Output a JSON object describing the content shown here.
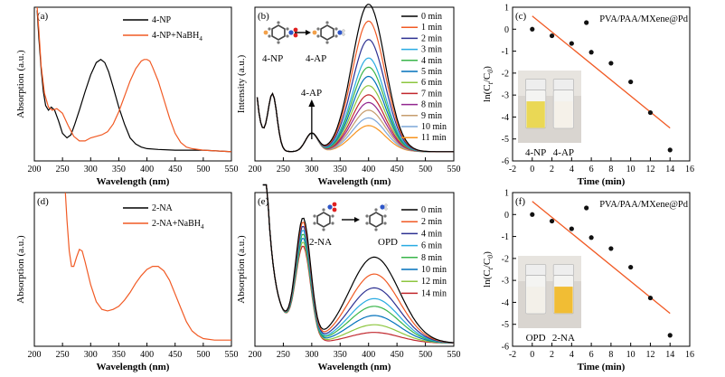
{
  "chart_data": [
    {
      "id": "a",
      "panel_label": "(a)",
      "type": "line",
      "xlabel": "Wavelength (nm)",
      "ylabel": "Absorption (a.u.)",
      "xlim": [
        200,
        550
      ],
      "ylim": [
        0,
        1
      ],
      "xticks": [
        "200",
        "250",
        "300",
        "350",
        "400",
        "450",
        "500",
        "550"
      ],
      "legend": "top-right",
      "series": [
        {
          "name": "4-NP",
          "color": "#000000",
          "x": [
            205,
            208,
            212,
            216,
            220,
            225,
            230,
            236,
            243,
            250,
            258,
            265,
            272,
            280,
            290,
            300,
            310,
            318,
            325,
            332,
            340,
            350,
            360,
            370,
            380,
            390,
            400,
            420,
            450,
            480,
            500,
            550
          ],
          "y": [
            0.98,
            0.8,
            0.6,
            0.45,
            0.36,
            0.33,
            0.35,
            0.33,
            0.26,
            0.18,
            0.15,
            0.17,
            0.24,
            0.33,
            0.45,
            0.56,
            0.64,
            0.66,
            0.64,
            0.58,
            0.48,
            0.35,
            0.24,
            0.15,
            0.11,
            0.09,
            0.08,
            0.075,
            0.07,
            0.07,
            0.07,
            0.06
          ]
        },
        {
          "name": "4-NP+NaBH",
          "sub": "4",
          "color": "#f15a24",
          "x": [
            205,
            208,
            212,
            218,
            225,
            232,
            240,
            250,
            260,
            270,
            280,
            290,
            300,
            310,
            320,
            330,
            340,
            350,
            360,
            370,
            380,
            390,
            395,
            400,
            405,
            410,
            420,
            430,
            440,
            450,
            460,
            470,
            480,
            500,
            550
          ],
          "y": [
            1.0,
            0.85,
            0.62,
            0.44,
            0.35,
            0.33,
            0.34,
            0.31,
            0.23,
            0.16,
            0.13,
            0.13,
            0.15,
            0.16,
            0.17,
            0.19,
            0.24,
            0.32,
            0.42,
            0.52,
            0.6,
            0.65,
            0.66,
            0.66,
            0.65,
            0.61,
            0.52,
            0.4,
            0.28,
            0.18,
            0.12,
            0.09,
            0.08,
            0.07,
            0.06
          ]
        }
      ]
    },
    {
      "id": "b",
      "panel_label": "(b)",
      "type": "line",
      "xlabel": "Wavelength (nm)",
      "ylabel": "Intensity (a.u.)",
      "xlim": [
        200,
        550
      ],
      "ylim": [
        0,
        1
      ],
      "xticks": [
        "200",
        "250",
        "300",
        "350",
        "400",
        "450",
        "500",
        "550"
      ],
      "legend": "top-right",
      "annotations": [
        "4-NP",
        "4-AP",
        "4-AP"
      ],
      "peak_heights": [
        0.96,
        0.85,
        0.73,
        0.61,
        0.55,
        0.49,
        0.43,
        0.37,
        0.32,
        0.27,
        0.22,
        0.17
      ],
      "series": [
        {
          "name": "0 min",
          "color": "#000000"
        },
        {
          "name": "1 min",
          "color": "#f15a24"
        },
        {
          "name": "2 min",
          "color": "#2e3192"
        },
        {
          "name": "3 min",
          "color": "#29abe2"
        },
        {
          "name": "4 min",
          "color": "#39b54a"
        },
        {
          "name": "5 min",
          "color": "#0071bc"
        },
        {
          "name": "6 min",
          "color": "#8dc63f"
        },
        {
          "name": "7 min",
          "color": "#c1272d"
        },
        {
          "name": "8 min",
          "color": "#92278f"
        },
        {
          "name": "9 min",
          "color": "#c69c6d"
        },
        {
          "name": "10 min",
          "color": "#7da7d9"
        },
        {
          "name": "11 min",
          "color": "#f7931e"
        }
      ]
    },
    {
      "id": "c",
      "panel_label": "(c)",
      "type": "scatter",
      "xlabel": "Time (min)",
      "ylabel": "ln(C/C)",
      "ylabel_sub1": "t",
      "ylabel_sub2": "0",
      "xlim": [
        -2,
        16
      ],
      "ylim": [
        -6,
        1
      ],
      "xticks": [
        "-2",
        "0",
        "2",
        "4",
        "6",
        "8",
        "10",
        "12",
        "14",
        "16"
      ],
      "yticks": [
        "1",
        "0",
        "-1",
        "-2",
        "-3",
        "-4",
        "-5",
        "-6"
      ],
      "catalyst": "PVA/PAA/MXene@Pd",
      "photo_labels": [
        "4-NP",
        "4-AP"
      ],
      "points": {
        "x": [
          0,
          2,
          4,
          5.5,
          6,
          8,
          10,
          12,
          14
        ],
        "y": [
          0,
          -0.3,
          -0.65,
          0.3,
          -1.05,
          -1.55,
          -2.4,
          -3.8,
          -5.5
        ]
      },
      "fit": {
        "x": [
          0,
          14
        ],
        "y": [
          0.6,
          -4.5
        ],
        "color": "#f15a24"
      }
    },
    {
      "id": "d",
      "panel_label": "(d)",
      "type": "line",
      "xlabel": "Wavelength (nm)",
      "ylabel": "Absorption (a.u.)",
      "xlim": [
        200,
        550
      ],
      "ylim": [
        0,
        1
      ],
      "xticks": [
        "200",
        "250",
        "300",
        "350",
        "400",
        "450",
        "500",
        "550"
      ],
      "legend": "top-right",
      "series": [
        {
          "name": "2-NA",
          "color": "#000000",
          "x": [],
          "y": []
        },
        {
          "name": "2-NA+NaBH",
          "sub": "4",
          "color": "#f15a24",
          "x": [
            255,
            258,
            262,
            266,
            270,
            275,
            280,
            285,
            290,
            300,
            310,
            320,
            330,
            340,
            350,
            360,
            370,
            380,
            390,
            400,
            410,
            420,
            430,
            440,
            450,
            460,
            470,
            480,
            490,
            500,
            520,
            550
          ],
          "y": [
            1.0,
            0.82,
            0.62,
            0.52,
            0.52,
            0.58,
            0.63,
            0.62,
            0.55,
            0.4,
            0.29,
            0.24,
            0.23,
            0.24,
            0.26,
            0.3,
            0.35,
            0.41,
            0.46,
            0.5,
            0.52,
            0.52,
            0.49,
            0.43,
            0.34,
            0.25,
            0.16,
            0.1,
            0.07,
            0.05,
            0.04,
            0.04
          ]
        }
      ]
    },
    {
      "id": "e",
      "panel_label": "(e)",
      "type": "line",
      "xlabel": "Wavelength (nm)",
      "ylabel": "Absorption (a.u.)",
      "xlim": [
        200,
        550
      ],
      "ylim": [
        0,
        1
      ],
      "xticks": [
        "200",
        "250",
        "300",
        "350",
        "400",
        "450",
        "500",
        "550"
      ],
      "legend": "top-right",
      "annotations": [
        "2-NA",
        "OPD"
      ],
      "peak_heights": [
        0.56,
        0.45,
        0.36,
        0.29,
        0.24,
        0.18,
        0.12,
        0.07
      ],
      "series": [
        {
          "name": "0 min",
          "color": "#000000"
        },
        {
          "name": "2 min",
          "color": "#f15a24"
        },
        {
          "name": "4 min",
          "color": "#2e3192"
        },
        {
          "name": "6 min",
          "color": "#29abe2"
        },
        {
          "name": "8 min",
          "color": "#39b54a"
        },
        {
          "name": "10 min",
          "color": "#0071bc"
        },
        {
          "name": "12 min",
          "color": "#8dc63f"
        },
        {
          "name": "14 min",
          "color": "#c1272d"
        }
      ]
    },
    {
      "id": "f",
      "panel_label": "(f)",
      "type": "scatter",
      "xlabel": "Time (min)",
      "ylabel": "ln(C/C)",
      "ylabel_sub1": "t",
      "ylabel_sub2": "0",
      "xlim": [
        -2,
        16
      ],
      "ylim": [
        -6,
        1
      ],
      "xticks": [
        "-2",
        "0",
        "2",
        "4",
        "6",
        "8",
        "10",
        "12",
        "14",
        "16"
      ],
      "yticks": [
        "1",
        "0",
        "-1",
        "-2",
        "-3",
        "-4",
        "-5",
        "-6"
      ],
      "catalyst": "PVA/PAA/MXene@Pd",
      "photo_labels": [
        "OPD",
        "2-NA"
      ],
      "points": {
        "x": [
          0,
          2,
          4,
          5.5,
          6,
          8,
          10,
          12,
          14
        ],
        "y": [
          0,
          -0.3,
          -0.65,
          0.3,
          -1.05,
          -1.55,
          -2.4,
          -3.8,
          -5.5
        ]
      },
      "fit": {
        "x": [
          0,
          14
        ],
        "y": [
          0.6,
          -4.5
        ],
        "color": "#f15a24"
      }
    }
  ]
}
